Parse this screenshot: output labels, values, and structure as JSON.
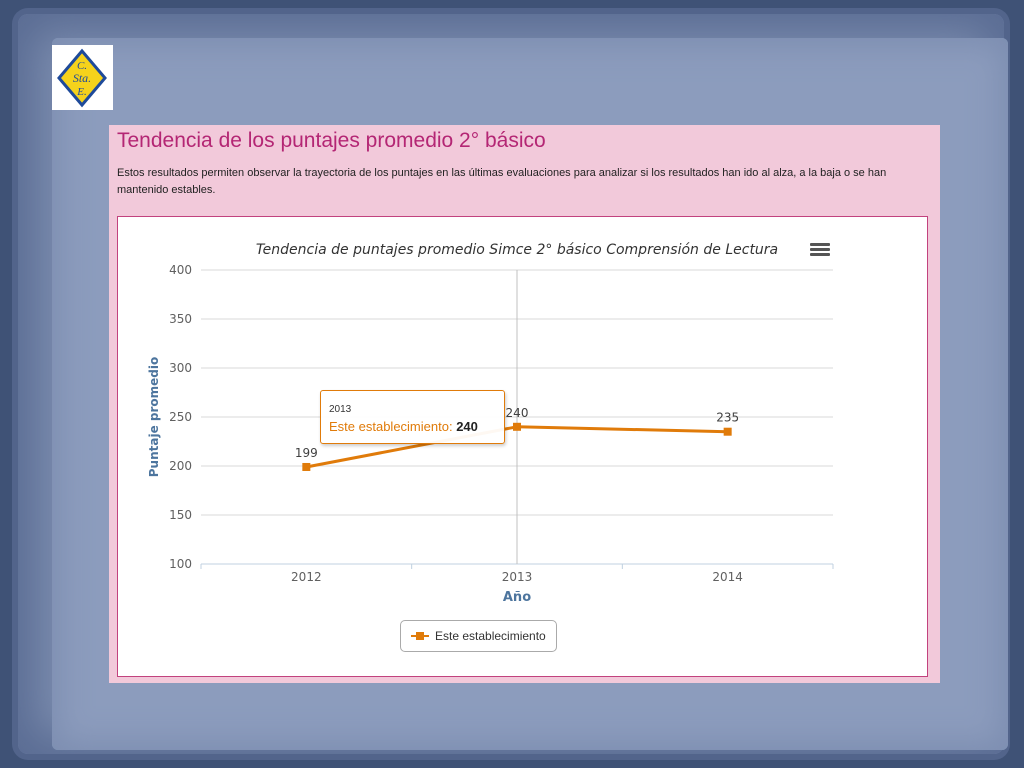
{
  "logo": {
    "text_line1": "C.",
    "text_line2": "Sta.",
    "text_line3": "E.",
    "colors": {
      "fill": "#f5d21b",
      "border": "#1e4a9a"
    }
  },
  "panel": {
    "title": "Tendencia de los puntajes promedio 2° básico",
    "description": "Estos resultados permiten observar la trayectoria de los puntajes en las últimas evaluaciones para analizar si los resultados han ido al alza, a la baja o se han mantenido estables."
  },
  "chart_menu_icon": "hamburger-menu-icon",
  "tooltip": {
    "x_label": "2013",
    "series_name": "Este establecimiento",
    "value": "240"
  },
  "chart_data": {
    "type": "line",
    "title": "Tendencia de puntajes promedio Simce 2° básico Comprensión de Lectura",
    "xlabel": "Año",
    "ylabel": "Puntaje promedio",
    "categories": [
      "2012",
      "2013",
      "2014"
    ],
    "series": [
      {
        "name": "Este establecimiento",
        "values": [
          199,
          240,
          235
        ],
        "color": "#e07b0a"
      }
    ],
    "data_labels": [
      "199",
      "240",
      "235"
    ],
    "ylim": [
      100,
      400
    ],
    "yticks": [
      100,
      150,
      200,
      250,
      300,
      350,
      400
    ],
    "grid": true,
    "legend": "bottom-center"
  }
}
